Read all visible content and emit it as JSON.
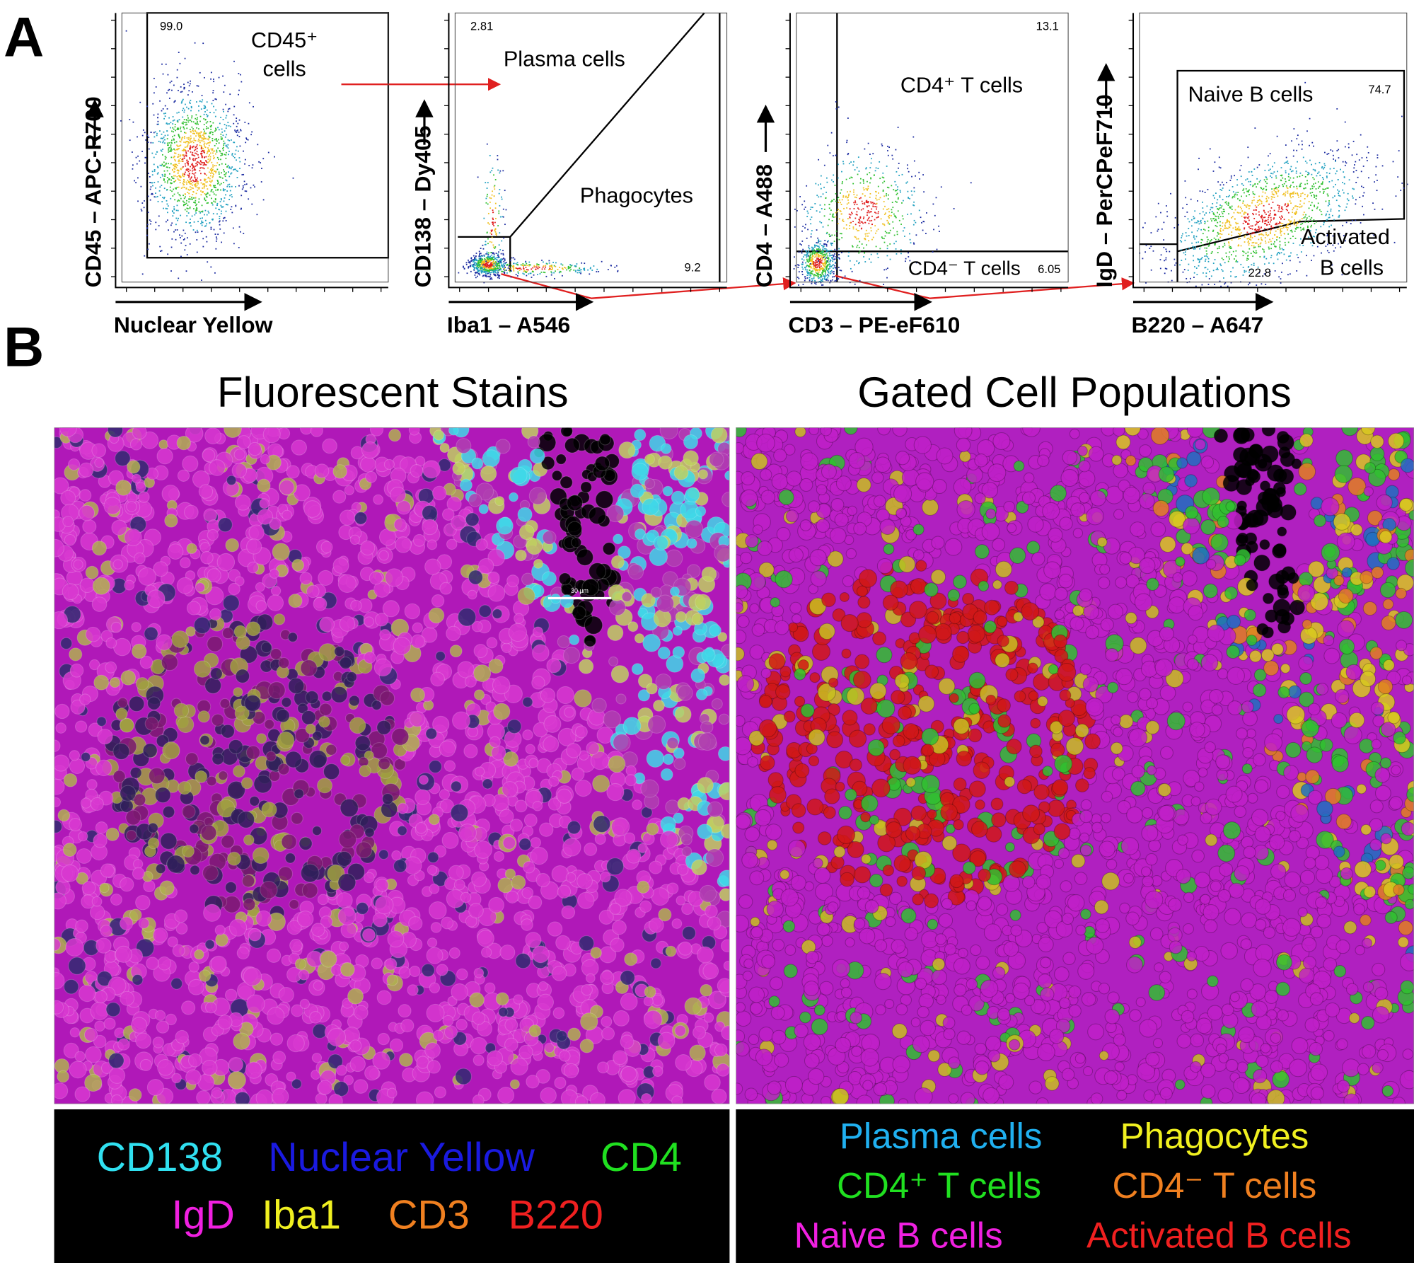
{
  "panel_a": {
    "label": "A",
    "plots": [
      {
        "y_label": "CD45 – APC-R700",
        "x_label": "Nuclear Yellow",
        "texts": [
          "99.0",
          "CD45⁺",
          "cells"
        ]
      },
      {
        "y_label": "CD138 – Dy405",
        "x_label": "Iba1 – A546",
        "texts": [
          "2.81",
          "Plasma cells",
          "Phagocytes",
          "9.2"
        ]
      },
      {
        "y_label": "CD4 – A488",
        "x_label": "CD3 – PE-eF610",
        "texts": [
          "13.1",
          "CD4⁺ T cells",
          "CD4⁻ T cells",
          "6.05"
        ]
      },
      {
        "y_label": "IgD – PerCPeF710",
        "x_label": "B220 – A647",
        "texts": [
          "Naive B cells",
          "74.7",
          "Activated",
          "B cells",
          "22.8"
        ]
      }
    ]
  },
  "panel_b": {
    "label": "B",
    "images": [
      {
        "title": "Fluorescent Stains",
        "scale_bar": "30 µm",
        "legend": [
          {
            "text": "CD138",
            "color": "#30e0f0"
          },
          {
            "text": "Nuclear Yellow",
            "color": "#1a1ae0"
          },
          {
            "text": "CD4",
            "color": "#20e020"
          },
          {
            "text": "IgD",
            "color": "#f020e0"
          },
          {
            "text": "Iba1",
            "color": "#f0f020"
          },
          {
            "text": "CD3",
            "color": "#f08020"
          },
          {
            "text": "B220",
            "color": "#f02020"
          }
        ]
      },
      {
        "title": "Gated Cell Populations",
        "legend": [
          {
            "text": "Plasma cells",
            "color": "#20b0f0"
          },
          {
            "text": "Phagocytes",
            "color": "#f0f020"
          },
          {
            "text": "CD4⁺ T cells",
            "color": "#20e020"
          },
          {
            "text": "CD4⁻ T cells",
            "color": "#f08020"
          },
          {
            "text": "Naive B cells",
            "color": "#f020e0"
          },
          {
            "text": "Activated B cells",
            "color": "#f02020"
          }
        ]
      }
    ]
  }
}
